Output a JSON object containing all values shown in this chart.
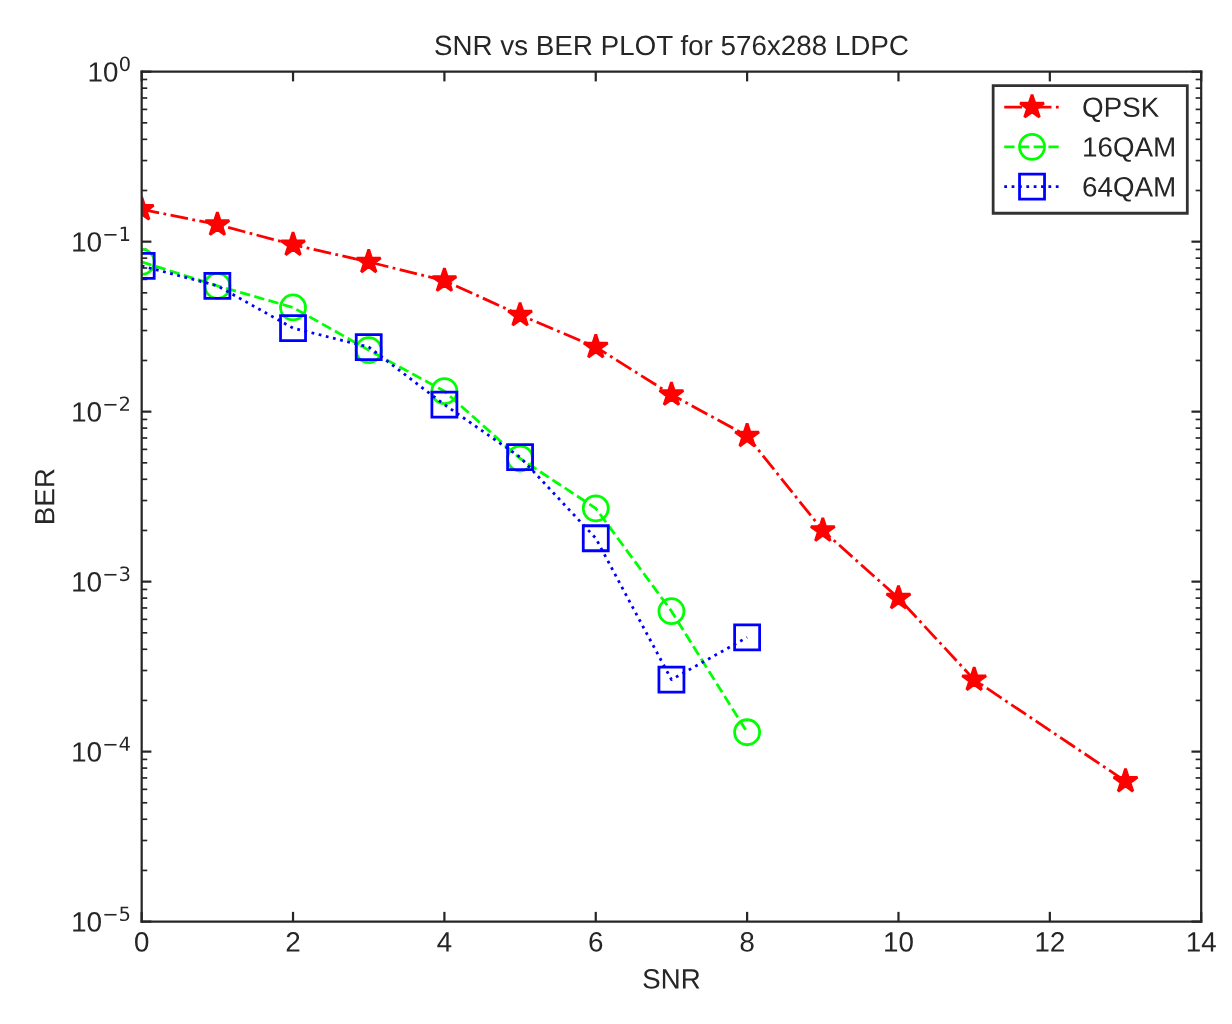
{
  "chart_data": {
    "type": "line",
    "title": "SNR vs BER PLOT for 576x288 LDPC",
    "xlabel": "SNR",
    "ylabel": "BER",
    "log": "y",
    "xlim": [
      0,
      14
    ],
    "xticks": [
      0,
      2,
      4,
      6,
      8,
      10,
      12,
      14
    ],
    "ylim": [
      1e-05,
      1
    ],
    "yticks": [
      {
        "value": 1e-05,
        "label": "10$^{−5}$"
      },
      {
        "value": 0.0001,
        "label": "10$^{−4}$"
      },
      {
        "value": 0.001,
        "label": "10$^{−3}$"
      },
      {
        "value": 0.01,
        "label": "10$^{−2}$"
      },
      {
        "value": 0.1,
        "label": "10$^{−1}$"
      },
      {
        "value": 1,
        "label": "10$^{0}$"
      }
    ],
    "grid": false,
    "legend": "top right",
    "series": [
      {
        "name": "QPSK",
        "color": "#ff0000",
        "marker": "star",
        "line_style": "dashdot",
        "x": [
          0,
          1,
          2,
          3,
          4,
          5,
          6,
          7,
          8,
          9,
          10,
          11,
          13
        ],
        "values": [
          0.155,
          0.126,
          0.096,
          0.076,
          0.059,
          0.037,
          0.024,
          0.0126,
          0.0072,
          0.002,
          0.0008,
          0.000265,
          6.7e-05
        ]
      },
      {
        "name": "16QAM",
        "color": "#00ff00",
        "marker": "circle",
        "line_style": "dashed",
        "x": [
          0,
          1,
          2,
          3,
          4,
          5,
          6,
          7,
          8
        ],
        "values": [
          0.076,
          0.055,
          0.041,
          0.023,
          0.0132,
          0.0053,
          0.0027,
          0.00067,
          0.00013
        ]
      },
      {
        "name": "64QAM",
        "color": "#0000ff",
        "marker": "square",
        "line_style": "dotted",
        "x": [
          0,
          1,
          2,
          3,
          4,
          5,
          6,
          7,
          8
        ],
        "values": [
          0.072,
          0.055,
          0.031,
          0.024,
          0.011,
          0.0054,
          0.0018,
          0.000265,
          0.00047
        ]
      }
    ]
  }
}
